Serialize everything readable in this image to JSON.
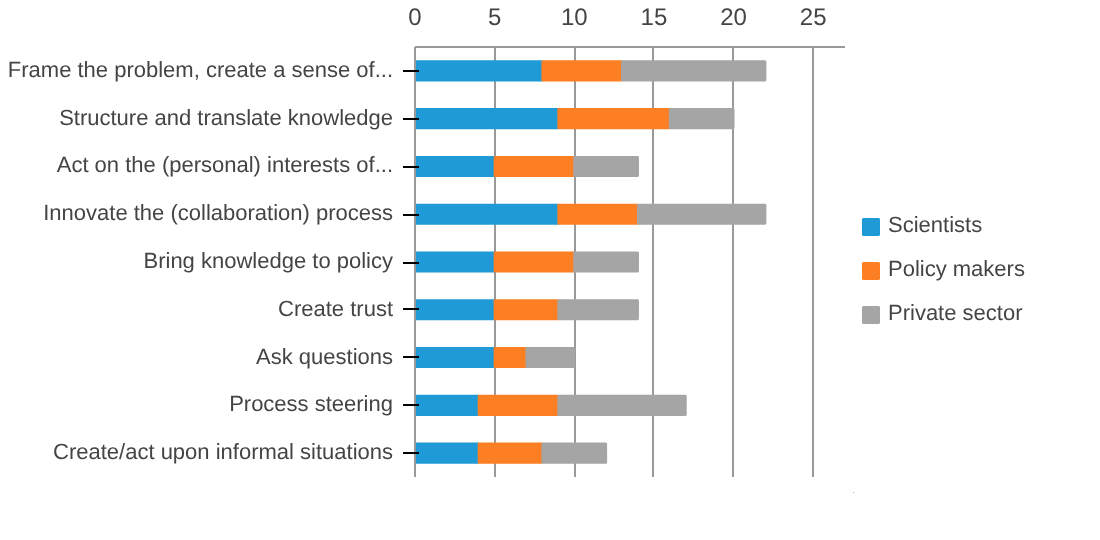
{
  "chart_data": {
    "type": "bar",
    "orientation": "horizontal",
    "stacked": true,
    "categories": [
      "Frame the problem, create a sense of...",
      "Structure and translate knowledge",
      "Act on the (personal) interests of...",
      "Innovate the (collaboration) process",
      "Bring knowledge to policy",
      "Create trust",
      "Ask questions",
      "Process steering",
      "Create/act upon informal situations"
    ],
    "series": [
      {
        "name": "Scientists",
        "color": "#1f9ad6",
        "values": [
          8,
          9,
          5,
          9,
          5,
          5,
          5,
          4,
          4
        ]
      },
      {
        "name": "Policy makers",
        "color": "#fd7f23",
        "values": [
          5,
          7,
          5,
          5,
          5,
          4,
          2,
          5,
          4
        ]
      },
      {
        "name": "Private sector",
        "color": "#a5a5a5",
        "values": [
          9,
          4,
          4,
          8,
          4,
          5,
          3,
          8,
          4
        ]
      }
    ],
    "xlim": [
      0,
      27
    ],
    "xticks": [
      0,
      5,
      10,
      15,
      20,
      25
    ],
    "grid": "x",
    "legend": "right"
  }
}
